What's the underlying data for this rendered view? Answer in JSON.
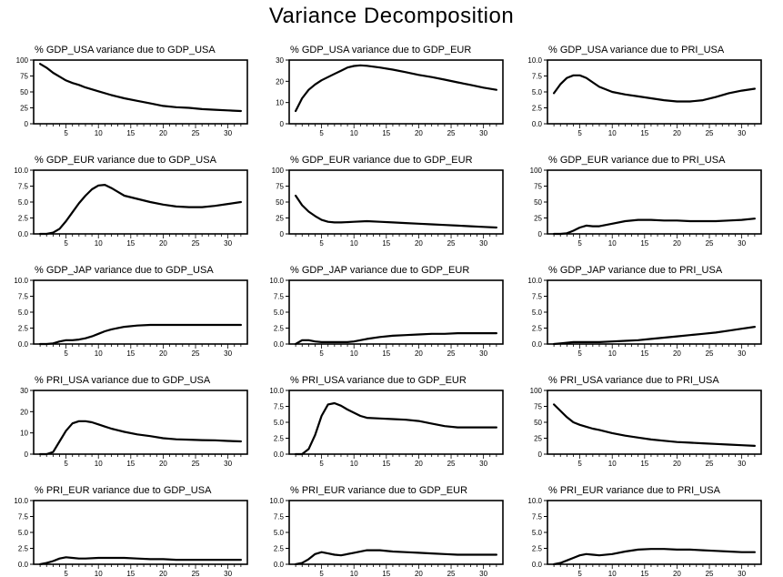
{
  "title": "Variance Decomposition",
  "chart_data": [
    {
      "type": "line",
      "title": "% GDP_USA variance due to GDP_USA",
      "ylim": [
        0,
        100
      ],
      "yticks": [
        "0",
        "25",
        "50",
        "75",
        "100"
      ],
      "xlim": [
        0,
        33
      ],
      "xticks": [
        5,
        10,
        15,
        20,
        25,
        30
      ],
      "series": [
        {
          "x": [
            1,
            2,
            3,
            4,
            5,
            6,
            7,
            8,
            10,
            12,
            14,
            16,
            18,
            20,
            22,
            24,
            26,
            28,
            30,
            32
          ],
          "values": [
            94,
            88,
            80,
            74,
            68,
            64,
            61,
            57,
            51,
            45,
            40,
            36,
            32,
            28,
            26,
            25,
            23,
            22,
            21,
            20
          ]
        }
      ]
    },
    {
      "type": "line",
      "title": "% GDP_USA variance due to GDP_EUR",
      "ylim": [
        0,
        30
      ],
      "yticks": [
        "0",
        "10",
        "20",
        "30"
      ],
      "xlim": [
        0,
        33
      ],
      "xticks": [
        5,
        10,
        15,
        20,
        25,
        30
      ],
      "series": [
        {
          "x": [
            1,
            2,
            3,
            4,
            5,
            6,
            7,
            8,
            9,
            10,
            11,
            12,
            14,
            16,
            18,
            20,
            22,
            24,
            26,
            28,
            30,
            32
          ],
          "values": [
            6,
            12,
            16,
            18.5,
            20.5,
            22,
            23.5,
            25,
            26.5,
            27.2,
            27.5,
            27.3,
            26.5,
            25.5,
            24.3,
            23,
            22,
            20.8,
            19.5,
            18.3,
            17,
            16
          ]
        }
      ]
    },
    {
      "type": "line",
      "title": "% GDP_USA variance due to PRI_USA",
      "ylim": [
        0,
        10
      ],
      "yticks": [
        "0.0",
        "2.5",
        "5.0",
        "7.5",
        "10.0"
      ],
      "xlim": [
        0,
        33
      ],
      "xticks": [
        5,
        10,
        15,
        20,
        25,
        30
      ],
      "series": [
        {
          "x": [
            1,
            2,
            3,
            4,
            5,
            6,
            7,
            8,
            10,
            12,
            14,
            16,
            18,
            20,
            22,
            24,
            26,
            28,
            30,
            32
          ],
          "values": [
            4.8,
            6.2,
            7.2,
            7.6,
            7.6,
            7.2,
            6.5,
            5.8,
            5.0,
            4.6,
            4.3,
            4.0,
            3.7,
            3.5,
            3.5,
            3.7,
            4.2,
            4.8,
            5.2,
            5.5
          ]
        }
      ]
    },
    {
      "type": "line",
      "title": "% GDP_EUR variance due to GDP_USA",
      "ylim": [
        0,
        10
      ],
      "yticks": [
        "0.0",
        "2.5",
        "5.0",
        "7.5",
        "10.0"
      ],
      "xlim": [
        0,
        33
      ],
      "xticks": [
        5,
        10,
        15,
        20,
        25,
        30
      ],
      "series": [
        {
          "x": [
            1,
            2,
            3,
            4,
            5,
            6,
            7,
            8,
            9,
            10,
            11,
            12,
            13,
            14,
            16,
            18,
            20,
            22,
            24,
            26,
            28,
            30,
            32
          ],
          "values": [
            0,
            0,
            0.2,
            0.8,
            2,
            3.4,
            4.8,
            6,
            7,
            7.6,
            7.7,
            7.2,
            6.6,
            6,
            5.5,
            5,
            4.6,
            4.3,
            4.2,
            4.2,
            4.4,
            4.7,
            5
          ]
        }
      ]
    },
    {
      "type": "line",
      "title": "% GDP_EUR variance due to GDP_EUR",
      "ylim": [
        0,
        100
      ],
      "yticks": [
        "0",
        "25",
        "50",
        "75",
        "100"
      ],
      "xlim": [
        0,
        33
      ],
      "xticks": [
        5,
        10,
        15,
        20,
        25,
        30
      ],
      "series": [
        {
          "x": [
            1,
            2,
            3,
            4,
            5,
            6,
            7,
            8,
            10,
            12,
            14,
            16,
            18,
            20,
            22,
            24,
            26,
            28,
            30,
            32
          ],
          "values": [
            60,
            45,
            35,
            28,
            22,
            19,
            18,
            18,
            19,
            20,
            19,
            18,
            17,
            16,
            15,
            14,
            13,
            12,
            11,
            10
          ]
        }
      ]
    },
    {
      "type": "line",
      "title": "% GDP_EUR variance due to PRI_USA",
      "ylim": [
        0,
        100
      ],
      "yticks": [
        "0",
        "25",
        "50",
        "75",
        "100"
      ],
      "xlim": [
        0,
        33
      ],
      "xticks": [
        5,
        10,
        15,
        20,
        25,
        30
      ],
      "series": [
        {
          "x": [
            1,
            2,
            3,
            4,
            5,
            6,
            7,
            8,
            10,
            12,
            14,
            16,
            18,
            20,
            22,
            24,
            26,
            28,
            30,
            32
          ],
          "values": [
            0,
            0,
            1,
            5,
            10,
            13,
            12,
            12,
            16,
            20,
            22,
            22,
            21,
            21,
            20,
            20,
            20,
            21,
            22,
            24
          ]
        }
      ]
    },
    {
      "type": "line",
      "title": "% GDP_JAP variance due to GDP_USA",
      "ylim": [
        0,
        10
      ],
      "yticks": [
        "0.0",
        "2.5",
        "5.0",
        "7.5",
        "10.0"
      ],
      "xlim": [
        0,
        33
      ],
      "xticks": [
        5,
        10,
        15,
        20,
        25,
        30
      ],
      "series": [
        {
          "x": [
            1,
            2,
            3,
            4,
            5,
            6,
            7,
            8,
            9,
            10,
            11,
            12,
            14,
            16,
            18,
            20,
            22,
            24,
            26,
            28,
            30,
            32
          ],
          "values": [
            0,
            0,
            0.1,
            0.4,
            0.6,
            0.6,
            0.7,
            0.9,
            1.2,
            1.6,
            2,
            2.3,
            2.7,
            2.9,
            3,
            3,
            3,
            3,
            3,
            3,
            3,
            3
          ]
        }
      ]
    },
    {
      "type": "line",
      "title": "% GDP_JAP variance due to GDP_EUR",
      "ylim": [
        0,
        10
      ],
      "yticks": [
        "0.0",
        "2.5",
        "5.0",
        "7.5",
        "10.0"
      ],
      "xlim": [
        0,
        33
      ],
      "xticks": [
        5,
        10,
        15,
        20,
        25,
        30
      ],
      "series": [
        {
          "x": [
            1,
            2,
            3,
            4,
            5,
            6,
            7,
            8,
            9,
            10,
            11,
            12,
            14,
            16,
            18,
            20,
            22,
            24,
            26,
            28,
            30,
            32
          ],
          "values": [
            0,
            0.6,
            0.6,
            0.4,
            0.3,
            0.3,
            0.3,
            0.3,
            0.3,
            0.4,
            0.6,
            0.8,
            1.1,
            1.3,
            1.4,
            1.5,
            1.6,
            1.6,
            1.7,
            1.7,
            1.7,
            1.7
          ]
        }
      ]
    },
    {
      "type": "line",
      "title": "% GDP_JAP variance due to PRI_USA",
      "ylim": [
        0,
        10
      ],
      "yticks": [
        "0.0",
        "2.5",
        "5.0",
        "7.5",
        "10.0"
      ],
      "xlim": [
        0,
        33
      ],
      "xticks": [
        5,
        10,
        15,
        20,
        25,
        30
      ],
      "series": [
        {
          "x": [
            1,
            2,
            3,
            4,
            6,
            8,
            10,
            12,
            14,
            16,
            18,
            20,
            22,
            24,
            26,
            28,
            30,
            32
          ],
          "values": [
            0,
            0.1,
            0.2,
            0.3,
            0.3,
            0.3,
            0.4,
            0.5,
            0.6,
            0.8,
            1,
            1.2,
            1.4,
            1.6,
            1.8,
            2.1,
            2.4,
            2.7
          ]
        }
      ]
    },
    {
      "type": "line",
      "title": "% PRI_USA variance due to GDP_USA",
      "ylim": [
        0,
        30
      ],
      "yticks": [
        "0",
        "10",
        "20",
        "30"
      ],
      "xlim": [
        0,
        33
      ],
      "xticks": [
        5,
        10,
        15,
        20,
        25,
        30
      ],
      "series": [
        {
          "x": [
            1,
            2,
            3,
            4,
            5,
            6,
            7,
            8,
            9,
            10,
            11,
            12,
            14,
            16,
            18,
            20,
            22,
            24,
            26,
            28,
            30,
            32
          ],
          "values": [
            0,
            0,
            1,
            6,
            11,
            14.5,
            15.5,
            15.5,
            15,
            14,
            13,
            12,
            10.5,
            9.3,
            8.5,
            7.5,
            7,
            6.8,
            6.6,
            6.5,
            6.2,
            6
          ]
        }
      ]
    },
    {
      "type": "line",
      "title": "% PRI_USA variance due to GDP_EUR",
      "ylim": [
        0,
        10
      ],
      "yticks": [
        "0.0",
        "2.5",
        "5.0",
        "7.5",
        "10.0"
      ],
      "xlim": [
        0,
        33
      ],
      "xticks": [
        5,
        10,
        15,
        20,
        25,
        30
      ],
      "series": [
        {
          "x": [
            1,
            2,
            3,
            4,
            5,
            6,
            7,
            8,
            9,
            10,
            11,
            12,
            14,
            16,
            18,
            20,
            22,
            24,
            26,
            28,
            30,
            32
          ],
          "values": [
            0,
            0,
            0.8,
            3,
            6,
            7.8,
            8,
            7.6,
            7,
            6.5,
            6,
            5.7,
            5.6,
            5.5,
            5.4,
            5.2,
            4.8,
            4.4,
            4.2,
            4.2,
            4.2,
            4.2
          ]
        }
      ]
    },
    {
      "type": "line",
      "title": "% PRI_USA variance due to PRI_USA",
      "ylim": [
        0,
        100
      ],
      "yticks": [
        "0",
        "25",
        "50",
        "75",
        "100"
      ],
      "xlim": [
        0,
        33
      ],
      "xticks": [
        5,
        10,
        15,
        20,
        25,
        30
      ],
      "series": [
        {
          "x": [
            1,
            2,
            3,
            4,
            5,
            6,
            7,
            8,
            10,
            12,
            14,
            16,
            18,
            20,
            22,
            24,
            26,
            28,
            30,
            32
          ],
          "values": [
            78,
            68,
            58,
            50,
            46,
            43,
            40,
            38,
            33,
            29,
            26,
            23,
            21,
            19,
            18,
            17,
            16,
            15,
            14,
            13
          ]
        }
      ]
    },
    {
      "type": "line",
      "title": "% PRI_EUR variance due to GDP_USA",
      "ylim": [
        0,
        10
      ],
      "yticks": [
        "0.0",
        "2.5",
        "5.0",
        "7.5",
        "10.0"
      ],
      "xlim": [
        0,
        33
      ],
      "xticks": [
        5,
        10,
        15,
        20,
        25,
        30
      ],
      "series": [
        {
          "x": [
            1,
            2,
            3,
            4,
            5,
            6,
            7,
            8,
            10,
            12,
            14,
            16,
            18,
            20,
            22,
            24,
            26,
            28,
            30,
            32
          ],
          "values": [
            0,
            0.2,
            0.5,
            0.9,
            1.1,
            1.0,
            0.9,
            0.9,
            1.0,
            1.0,
            1.0,
            0.9,
            0.8,
            0.8,
            0.7,
            0.7,
            0.7,
            0.7,
            0.7,
            0.7
          ]
        }
      ]
    },
    {
      "type": "line",
      "title": "% PRI_EUR variance due to GDP_EUR",
      "ylim": [
        0,
        10
      ],
      "yticks": [
        "0.0",
        "2.5",
        "5.0",
        "7.5",
        "10.0"
      ],
      "xlim": [
        0,
        33
      ],
      "xticks": [
        5,
        10,
        15,
        20,
        25,
        30
      ],
      "series": [
        {
          "x": [
            1,
            2,
            3,
            4,
            5,
            6,
            7,
            8,
            10,
            12,
            14,
            16,
            18,
            20,
            22,
            24,
            26,
            28,
            30,
            32
          ],
          "values": [
            0,
            0.2,
            0.8,
            1.6,
            1.9,
            1.7,
            1.5,
            1.4,
            1.8,
            2.2,
            2.2,
            2.0,
            1.9,
            1.8,
            1.7,
            1.6,
            1.5,
            1.5,
            1.5,
            1.5
          ]
        }
      ]
    },
    {
      "type": "line",
      "title": "% PRI_EUR variance due to PRI_USA",
      "ylim": [
        0,
        10
      ],
      "yticks": [
        "0.0",
        "2.5",
        "5.0",
        "7.5",
        "10.0"
      ],
      "xlim": [
        0,
        33
      ],
      "xticks": [
        5,
        10,
        15,
        20,
        25,
        30
      ],
      "series": [
        {
          "x": [
            1,
            2,
            3,
            4,
            5,
            6,
            7,
            8,
            10,
            12,
            14,
            16,
            18,
            20,
            22,
            24,
            26,
            28,
            30,
            32
          ],
          "values": [
            0,
            0.2,
            0.6,
            1.0,
            1.4,
            1.6,
            1.5,
            1.4,
            1.6,
            2.0,
            2.3,
            2.4,
            2.4,
            2.3,
            2.3,
            2.2,
            2.1,
            2.0,
            1.9,
            1.9
          ]
        }
      ]
    }
  ]
}
